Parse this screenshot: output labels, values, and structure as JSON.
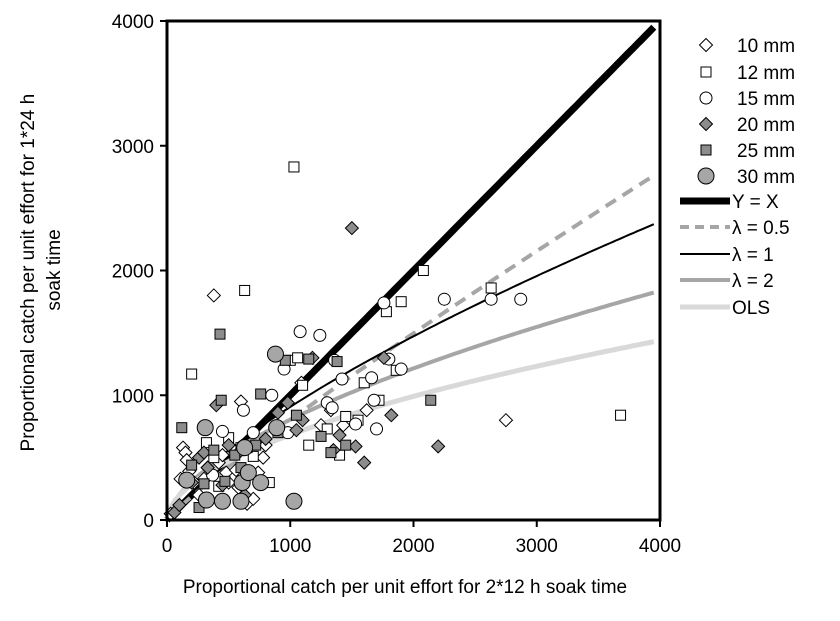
{
  "chart_data": {
    "type": "scatter",
    "xlabel": "Proportional catch per unit effort for 2*12 h soak time",
    "ylabel": [
      "Proportional catch per unit effort for 1*24 h",
      "soak time"
    ],
    "xlim": [
      0,
      4000
    ],
    "ylim": [
      0,
      4000
    ],
    "xticks": [
      "0",
      "1000",
      "2000",
      "3000",
      "4000"
    ],
    "yticks": [
      "0",
      "1000",
      "2000",
      "3000",
      "4000"
    ],
    "grid": false,
    "legend_position": "right",
    "series": [
      {
        "name": "10 mm",
        "marker": "diamond",
        "fill": "#ffffff",
        "points": [
          [
            30,
            50
          ],
          [
            110,
            330
          ],
          [
            130,
            580
          ],
          [
            150,
            540
          ],
          [
            160,
            480
          ],
          [
            180,
            390
          ],
          [
            220,
            300
          ],
          [
            260,
            200
          ],
          [
            300,
            330
          ],
          [
            330,
            420
          ],
          [
            380,
            1800
          ],
          [
            420,
            460
          ],
          [
            450,
            520
          ],
          [
            480,
            380
          ],
          [
            500,
            300
          ],
          [
            540,
            560
          ],
          [
            560,
            400
          ],
          [
            580,
            260
          ],
          [
            600,
            950
          ],
          [
            620,
            320
          ],
          [
            650,
            130
          ],
          [
            700,
            170
          ],
          [
            740,
            380
          ],
          [
            780,
            500
          ],
          [
            800,
            600
          ],
          [
            1090,
            1100
          ],
          [
            1250,
            760
          ],
          [
            1330,
            880
          ],
          [
            1430,
            760
          ],
          [
            1620,
            880
          ],
          [
            2750,
            800
          ]
        ]
      },
      {
        "name": "12 mm",
        "marker": "square",
        "fill": "#ffffff",
        "points": [
          [
            200,
            1170
          ],
          [
            320,
            620
          ],
          [
            380,
            500
          ],
          [
            420,
            270
          ],
          [
            500,
            660
          ],
          [
            600,
            580
          ],
          [
            630,
            1840
          ],
          [
            700,
            510
          ],
          [
            830,
            300
          ],
          [
            1000,
            1280
          ],
          [
            1030,
            2830
          ],
          [
            1060,
            1300
          ],
          [
            1100,
            1080
          ],
          [
            1150,
            600
          ],
          [
            1300,
            730
          ],
          [
            1400,
            520
          ],
          [
            1450,
            830
          ],
          [
            1550,
            800
          ],
          [
            1600,
            1100
          ],
          [
            1720,
            960
          ],
          [
            1780,
            1670
          ],
          [
            1860,
            1200
          ],
          [
            1900,
            1750
          ],
          [
            2080,
            2000
          ],
          [
            2630,
            1860
          ],
          [
            3680,
            840
          ]
        ]
      },
      {
        "name": "15 mm",
        "marker": "circle",
        "fill": "#ffffff",
        "points": [
          [
            370,
            360
          ],
          [
            450,
            710
          ],
          [
            620,
            880
          ],
          [
            700,
            700
          ],
          [
            850,
            1000
          ],
          [
            950,
            1210
          ],
          [
            980,
            700
          ],
          [
            1080,
            1510
          ],
          [
            1240,
            1480
          ],
          [
            1300,
            940
          ],
          [
            1340,
            900
          ],
          [
            1360,
            1280
          ],
          [
            1420,
            1130
          ],
          [
            1530,
            770
          ],
          [
            1660,
            1140
          ],
          [
            1680,
            960
          ],
          [
            1700,
            730
          ],
          [
            1760,
            1740
          ],
          [
            1800,
            1290
          ],
          [
            1900,
            1210
          ],
          [
            2250,
            1770
          ],
          [
            2630,
            1770
          ],
          [
            2870,
            1770
          ]
        ]
      },
      {
        "name": "20 mm",
        "marker": "diamond",
        "fill": "#8c8c8c",
        "points": [
          [
            60,
            60
          ],
          [
            100,
            120
          ],
          [
            200,
            300
          ],
          [
            260,
            500
          ],
          [
            300,
            540
          ],
          [
            330,
            420
          ],
          [
            400,
            920
          ],
          [
            450,
            280
          ],
          [
            500,
            600
          ],
          [
            580,
            540
          ],
          [
            630,
            200
          ],
          [
            800,
            650
          ],
          [
            900,
            860
          ],
          [
            980,
            940
          ],
          [
            1050,
            720
          ],
          [
            1100,
            800
          ],
          [
            1180,
            1300
          ],
          [
            1350,
            560
          ],
          [
            1400,
            680
          ],
          [
            1500,
            2340
          ],
          [
            1530,
            590
          ],
          [
            1600,
            460
          ],
          [
            1760,
            1300
          ],
          [
            1820,
            840
          ],
          [
            2200,
            590
          ]
        ]
      },
      {
        "name": "25 mm",
        "marker": "square",
        "fill": "#8c8c8c",
        "points": [
          [
            120,
            740
          ],
          [
            200,
            440
          ],
          [
            260,
            100
          ],
          [
            300,
            290
          ],
          [
            380,
            560
          ],
          [
            430,
            1490
          ],
          [
            440,
            960
          ],
          [
            470,
            310
          ],
          [
            550,
            520
          ],
          [
            600,
            420
          ],
          [
            650,
            580
          ],
          [
            720,
            600
          ],
          [
            760,
            1010
          ],
          [
            900,
            700
          ],
          [
            960,
            1280
          ],
          [
            1050,
            840
          ],
          [
            1150,
            1290
          ],
          [
            1250,
            670
          ],
          [
            1330,
            540
          ],
          [
            1380,
            1270
          ],
          [
            1450,
            600
          ],
          [
            2140,
            960
          ]
        ]
      },
      {
        "name": "30 mm",
        "marker": "circle",
        "fill": "#a6a6a6",
        "points": [
          [
            160,
            320
          ],
          [
            310,
            740
          ],
          [
            320,
            160
          ],
          [
            450,
            150
          ],
          [
            600,
            150
          ],
          [
            610,
            300
          ],
          [
            630,
            580
          ],
          [
            660,
            380
          ],
          [
            760,
            300
          ],
          [
            880,
            1330
          ],
          [
            890,
            740
          ],
          [
            1030,
            150
          ]
        ]
      }
    ],
    "lines": [
      {
        "name": "Y = X",
        "color": "#000000",
        "width": 7,
        "dash": "",
        "a": 1,
        "b": 1
      },
      {
        "name": "λ = 0.5",
        "color": "#a6a6a6",
        "width": 4,
        "dash": "12 8",
        "a": 1.6,
        "b": 0.9
      },
      {
        "name": "λ = 1",
        "color": "#000000",
        "width": 2,
        "dash": "",
        "a": 7.2,
        "b": 0.7
      },
      {
        "name": "λ = 2",
        "color": "#a6a6a6",
        "width": 4,
        "dash": "",
        "a": 13.1,
        "b": 0.596
      },
      {
        "name": "OLS",
        "color": "#d9d9d9",
        "width": 5,
        "dash": "",
        "a": 16.6,
        "b": 0.538
      }
    ]
  }
}
